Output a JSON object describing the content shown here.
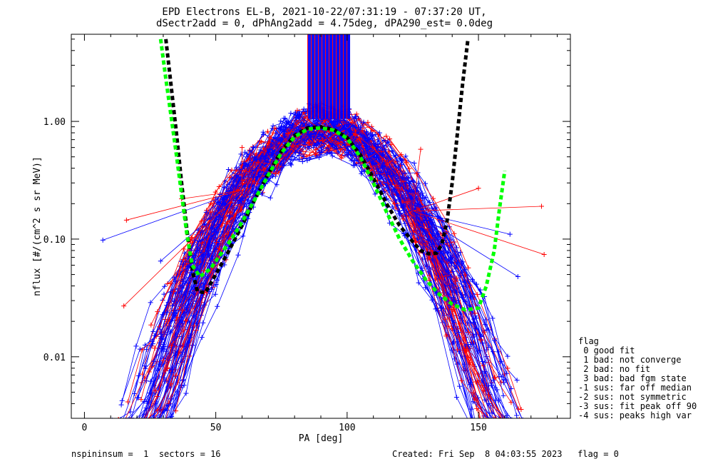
{
  "chart_data": {
    "type": "scatter",
    "title": "EPD Electrons EL-B, 2021-10-22/07:31:19 - 07:37:20 UT,",
    "subtitle": "dSectr2add = 0, dPhAng2add = 4.75deg, dPA290_est=   0.0deg",
    "xlabel": "PA [deg]",
    "ylabel": "nflux [#/(cm^2 s sr MeV)]",
    "xlim": [
      -5,
      185
    ],
    "ylim": [
      0.003,
      5.5
    ],
    "yscale": "log",
    "xticks": [
      {
        "v": 0,
        "label": "0"
      },
      {
        "v": 50,
        "label": "50"
      },
      {
        "v": 100,
        "label": "100"
      },
      {
        "v": 150,
        "label": "150"
      }
    ],
    "yticks": [
      {
        "v": 0.01,
        "label": "0.01"
      },
      {
        "v": 0.1,
        "label": "0.10"
      },
      {
        "v": 1,
        "label": "1.00"
      }
    ],
    "colors": {
      "blue": "#0000ff",
      "red": "#ff0000",
      "green": "#00ff00",
      "black": "#000000"
    },
    "fit_curves": {
      "green": {
        "x": [
          29,
          31,
          33,
          35,
          37,
          39,
          41,
          44,
          48,
          52,
          56,
          60,
          65,
          70,
          75,
          80,
          85,
          90,
          95,
          100,
          105,
          110,
          115,
          120,
          125,
          130,
          135,
          140,
          145,
          150,
          153,
          156,
          158,
          160
        ],
        "y": [
          5.0,
          2.3,
          1.1,
          0.52,
          0.24,
          0.11,
          0.06,
          0.048,
          0.056,
          0.075,
          0.1,
          0.14,
          0.22,
          0.35,
          0.54,
          0.74,
          0.86,
          0.88,
          0.84,
          0.72,
          0.5,
          0.3,
          0.17,
          0.1,
          0.065,
          0.045,
          0.034,
          0.028,
          0.025,
          0.026,
          0.04,
          0.08,
          0.18,
          0.38
        ]
      },
      "black": {
        "x": [
          31,
          33,
          35,
          37,
          39,
          41,
          43,
          46,
          50,
          55,
          60,
          65,
          70,
          75,
          80,
          85,
          90,
          95,
          100,
          105,
          110,
          115,
          120,
          125,
          128,
          131,
          134,
          136,
          138,
          140,
          142,
          144,
          146
        ],
        "y": [
          5.0,
          2.0,
          0.8,
          0.3,
          0.12,
          0.055,
          0.036,
          0.035,
          0.05,
          0.08,
          0.13,
          0.22,
          0.36,
          0.56,
          0.76,
          0.88,
          0.9,
          0.85,
          0.73,
          0.52,
          0.33,
          0.2,
          0.13,
          0.095,
          0.08,
          0.075,
          0.076,
          0.09,
          0.14,
          0.3,
          0.8,
          2.1,
          5.0
        ]
      }
    },
    "isolated_points": [
      {
        "x": 7,
        "y": 0.098,
        "c": "blue"
      },
      {
        "x": 16,
        "y": 0.145,
        "c": "red"
      },
      {
        "x": 15,
        "y": 0.027,
        "c": "red"
      },
      {
        "x": 29,
        "y": 0.065,
        "c": "blue"
      },
      {
        "x": 37,
        "y": 0.22,
        "c": "red"
      },
      {
        "x": 60,
        "y": 0.6,
        "c": "red"
      },
      {
        "x": 162,
        "y": 0.11,
        "c": "blue"
      },
      {
        "x": 174,
        "y": 0.19,
        "c": "red"
      },
      {
        "x": 175,
        "y": 0.074,
        "c": "red"
      },
      {
        "x": 150,
        "y": 0.27,
        "c": "red"
      },
      {
        "x": 128,
        "y": 0.58,
        "c": "red"
      },
      {
        "x": 165,
        "y": 0.048,
        "c": "blue"
      }
    ],
    "spikes": {
      "x_start": 85,
      "x_end": 101,
      "y_from": 1.05,
      "y_to": 5.5
    }
  },
  "legend": {
    "title": "flag",
    "items": [
      " 0 good fit",
      " 1 bad: not converge",
      " 2 bad: no fit",
      " 3 bad: bad fgm state",
      "-1 sus: far off median",
      "-2 sus: not symmetric",
      "-3 sus: fit peak off 90",
      "-4 sus: peaks high var"
    ]
  },
  "footer": {
    "left": "nspininsum =  1  sectors = 16",
    "right": "Created: Fri Sep  8 04:03:55 2023   flag = 0"
  }
}
